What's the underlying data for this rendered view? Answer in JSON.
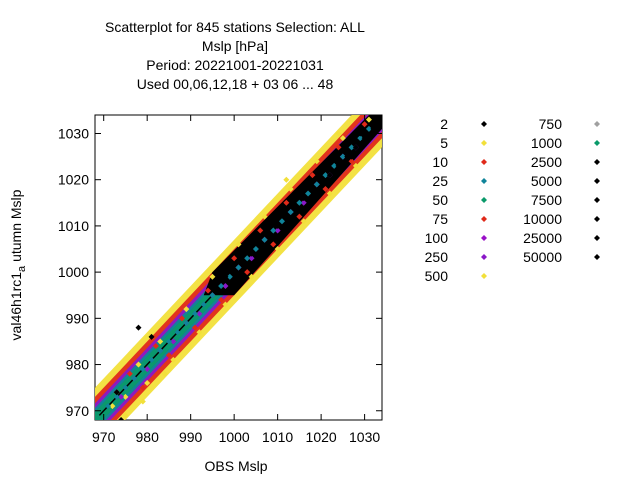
{
  "chart_data": {
    "type": "scatter",
    "title_lines": [
      "Scatterplot for  845 stations Selection: ALL",
      "Mslp [hPa]",
      "Period: 20221001-20221031",
      "Used  00,06,12,18  + 03 06 ... 48"
    ],
    "xlabel": "OBS Mslp",
    "ylabel_main": "val46h1rc1",
    "ylabel_sub": "a",
    "ylabel_rest": " utumn Mslp",
    "xlim": [
      968,
      1034
    ],
    "ylim": [
      968,
      1034
    ],
    "xticks": [
      970,
      980,
      990,
      1000,
      1010,
      1020,
      1030
    ],
    "yticks": [
      970,
      980,
      990,
      1000,
      1010,
      1020,
      1030
    ],
    "grid": false,
    "legend_placement": "right",
    "legend": [
      {
        "label": "2",
        "color": "#000000"
      },
      {
        "label": "5",
        "color": "#f2e03a"
      },
      {
        "label": "10",
        "color": "#e02a1a"
      },
      {
        "label": "25",
        "color": "#10849a"
      },
      {
        "label": "50",
        "color": "#0a9a6a"
      },
      {
        "label": "75",
        "color": "#e02a1a"
      },
      {
        "label": "100",
        "color": "#9a10c8"
      },
      {
        "label": "250",
        "color": "#8a18c8"
      },
      {
        "label": "500",
        "color": "#f2e03a"
      },
      {
        "label": "750",
        "color": "#a0a0a0"
      },
      {
        "label": "1000",
        "color": "#0a9a6a"
      },
      {
        "label": "2500",
        "color": "#000000"
      },
      {
        "label": "5000",
        "color": "#000000"
      },
      {
        "label": "7500",
        "color": "#000000"
      },
      {
        "label": "10000",
        "color": "#000000"
      },
      {
        "label": "25000",
        "color": "#000000"
      },
      {
        "label": "50000",
        "color": "#000000"
      }
    ],
    "series": [
      {
        "color": "#f2e03a",
        "points": [
          [
            972,
            971
          ],
          [
            975,
            973
          ],
          [
            978,
            980
          ],
          [
            980,
            976
          ],
          [
            983,
            985
          ],
          [
            986,
            981
          ],
          [
            989,
            992
          ],
          [
            992,
            987
          ],
          [
            995,
            999
          ],
          [
            998,
            993
          ],
          [
            1001,
            1006
          ],
          [
            1004,
            999
          ],
          [
            1007,
            1012
          ],
          [
            1010,
            1005
          ],
          [
            1013,
            1018
          ],
          [
            1016,
            1011
          ],
          [
            1019,
            1024
          ],
          [
            1022,
            1017
          ],
          [
            1025,
            1029
          ],
          [
            1028,
            1023
          ],
          [
            1031,
            1033
          ],
          [
            975,
            969
          ],
          [
            979,
            972
          ],
          [
            984,
            978
          ],
          [
            1024,
            1030
          ],
          [
            1012,
            1020
          ]
        ]
      },
      {
        "color": "#e02a1a",
        "points": [
          [
            973,
            974
          ],
          [
            976,
            978
          ],
          [
            979,
            975
          ],
          [
            982,
            984
          ],
          [
            985,
            982
          ],
          [
            988,
            990
          ],
          [
            991,
            988
          ],
          [
            994,
            996
          ],
          [
            997,
            994
          ],
          [
            1000,
            1003
          ],
          [
            1003,
            1000
          ],
          [
            1006,
            1009
          ],
          [
            1009,
            1006
          ],
          [
            1012,
            1015
          ],
          [
            1015,
            1012
          ],
          [
            1018,
            1021
          ],
          [
            1021,
            1018
          ],
          [
            1024,
            1027
          ],
          [
            1027,
            1024
          ],
          [
            1030,
            1032
          ]
        ]
      },
      {
        "color": "#8a18c8",
        "points": [
          [
            974,
            973
          ],
          [
            977,
            977
          ],
          [
            980,
            979
          ],
          [
            983,
            983
          ],
          [
            986,
            985
          ],
          [
            989,
            989
          ],
          [
            992,
            991
          ],
          [
            995,
            995
          ],
          [
            998,
            997
          ],
          [
            1001,
            1001
          ],
          [
            1004,
            1003
          ],
          [
            1007,
            1007
          ],
          [
            1010,
            1009
          ],
          [
            1013,
            1013
          ],
          [
            1016,
            1015
          ],
          [
            1019,
            1019
          ],
          [
            1022,
            1021
          ],
          [
            1025,
            1025
          ],
          [
            1028,
            1027
          ]
        ]
      },
      {
        "color": "#10849a",
        "points": [
          [
            971,
            971
          ],
          [
            973,
            973
          ],
          [
            975,
            975
          ],
          [
            977,
            977
          ],
          [
            979,
            979
          ],
          [
            981,
            981
          ],
          [
            983,
            983
          ],
          [
            985,
            985
          ],
          [
            987,
            987
          ],
          [
            989,
            989
          ],
          [
            991,
            991
          ],
          [
            993,
            993
          ],
          [
            995,
            995
          ],
          [
            997,
            997
          ],
          [
            999,
            999
          ],
          [
            1001,
            1001
          ],
          [
            1003,
            1003
          ],
          [
            1005,
            1005
          ],
          [
            1007,
            1007
          ],
          [
            1009,
            1009
          ],
          [
            1011,
            1011
          ],
          [
            1013,
            1013
          ],
          [
            1015,
            1015
          ],
          [
            1017,
            1017
          ],
          [
            1019,
            1019
          ],
          [
            1021,
            1021
          ],
          [
            1023,
            1023
          ],
          [
            1025,
            1025
          ],
          [
            1027,
            1027
          ],
          [
            1029,
            1029
          ],
          [
            1031,
            1031
          ]
        ]
      },
      {
        "color": "#000000",
        "points": [
          [
            973,
            974
          ],
          [
            978,
            988
          ],
          [
            981,
            986
          ],
          [
            996,
            998
          ],
          [
            998,
            999
          ],
          [
            1000,
            1000
          ],
          [
            1002,
            1002
          ],
          [
            1004,
            1004
          ],
          [
            1006,
            1006
          ],
          [
            1008,
            1008
          ],
          [
            1010,
            1010
          ],
          [
            1012,
            1012
          ],
          [
            1014,
            1014
          ],
          [
            1016,
            1016
          ],
          [
            1018,
            1018
          ],
          [
            1020,
            1020
          ],
          [
            1022,
            1021
          ],
          [
            1024,
            1023
          ],
          [
            1026,
            1025
          ],
          [
            1028,
            1027
          ],
          [
            1030,
            1029
          ],
          [
            1032,
            1031
          ],
          [
            974,
            968
          ],
          [
            1027,
            1025
          ],
          [
            1029,
            1030
          ]
        ]
      }
    ]
  }
}
